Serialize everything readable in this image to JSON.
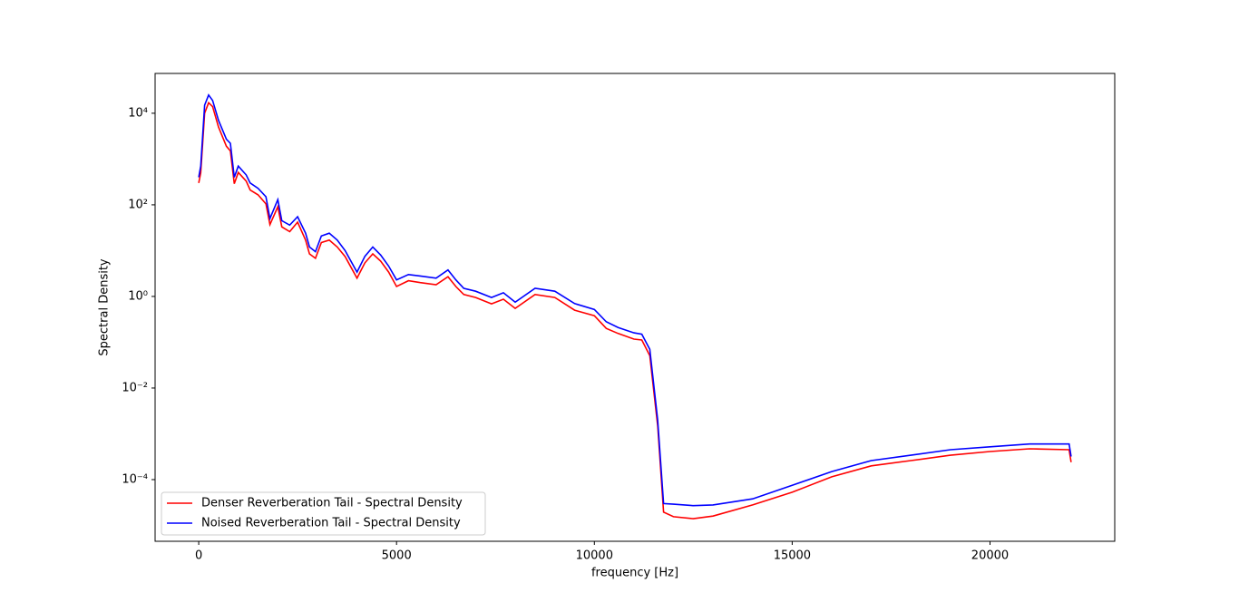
{
  "chart_data": {
    "type": "line",
    "x_label": "frequency [Hz]",
    "y_label": "Spectral Density",
    "x": [
      0,
      50,
      150,
      250,
      350,
      500,
      700,
      800,
      900,
      1000,
      1200,
      1300,
      1500,
      1700,
      1800,
      2000,
      2100,
      2300,
      2500,
      2700,
      2800,
      2950,
      3100,
      3300,
      3500,
      3700,
      4000,
      4200,
      4400,
      4600,
      4800,
      5000,
      5300,
      5600,
      6000,
      6300,
      6500,
      6700,
      7000,
      7400,
      7700,
      8000,
      8500,
      9000,
      9500,
      10000,
      10300,
      10600,
      11000,
      11200,
      11400,
      11600,
      11750,
      12000,
      12500,
      13000,
      14000,
      15000,
      16000,
      17000,
      18000,
      19000,
      20000,
      21000,
      22000,
      22050
    ],
    "series": [
      {
        "name": "Denser Reverberation Tail - Spectral Density",
        "color": "#ff0000",
        "values": [
          300,
          500,
          10000,
          17000,
          14000,
          5000,
          1900,
          1500,
          290,
          510,
          330,
          210,
          165,
          105,
          37,
          91,
          33,
          26,
          42,
          17,
          8.5,
          6.8,
          15,
          17,
          12,
          7.4,
          2.5,
          5.4,
          8.5,
          5.9,
          3.4,
          1.65,
          2.2,
          2.0,
          1.8,
          2.7,
          1.65,
          1.1,
          0.95,
          0.69,
          0.87,
          0.55,
          1.1,
          0.95,
          0.5,
          0.38,
          0.2,
          0.155,
          0.117,
          0.112,
          0.051,
          0.0015,
          1.94e-05,
          1.55e-05,
          1.4e-05,
          1.6e-05,
          2.8e-05,
          5.3e-05,
          0.000115,
          0.0002,
          0.00026,
          0.00034,
          0.00041,
          0.00047,
          0.00045,
          0.00024
        ]
      },
      {
        "name": "Noised Reverberation Tail - Spectral Density",
        "color": "#0000ff",
        "values": [
          400,
          700,
          15000,
          25000,
          19000,
          7000,
          2700,
          2200,
          400,
          700,
          450,
          300,
          230,
          150,
          50,
          130,
          45,
          36,
          55,
          24,
          12,
          9.5,
          21,
          24,
          17,
          10,
          3.4,
          7.5,
          12,
          8,
          4.6,
          2.3,
          3,
          2.8,
          2.5,
          3.8,
          2.3,
          1.5,
          1.3,
          0.95,
          1.2,
          0.75,
          1.5,
          1.3,
          0.7,
          0.52,
          0.28,
          0.21,
          0.16,
          0.15,
          0.07,
          0.002,
          3e-05,
          2.9e-05,
          2.7e-05,
          2.8e-05,
          3.8e-05,
          7.5e-05,
          0.00015,
          0.00026,
          0.00034,
          0.00045,
          0.00052,
          0.0006,
          0.0006,
          0.00032
        ]
      }
    ],
    "xlim": [
      -1102.5,
      23152.5
    ],
    "xticks": [
      0,
      5000,
      10000,
      15000,
      20000
    ],
    "ylim": [
      4.5e-06,
      74000
    ],
    "log_y": true,
    "yticks": [
      {
        "value": 0.0001,
        "label": "10⁻⁴"
      },
      {
        "value": 0.01,
        "label": "10⁻²"
      },
      {
        "value": 1,
        "label": "10⁰"
      },
      {
        "value": 100,
        "label": "10²"
      },
      {
        "value": 10000,
        "label": "10⁴"
      }
    ],
    "legend": "lower left"
  }
}
